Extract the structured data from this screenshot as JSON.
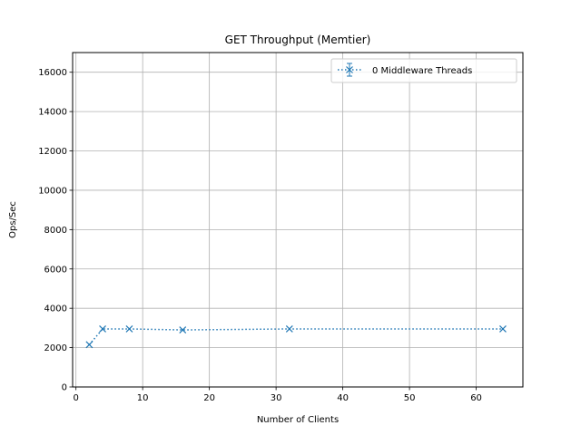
{
  "chart_data": {
    "type": "line",
    "title": "GET Throughput (Memtier)",
    "xlabel": "Number of Clients",
    "ylabel": "Ops/Sec",
    "xlim": [
      -0.5,
      67
    ],
    "ylim": [
      0,
      17000
    ],
    "xticks": [
      0,
      10,
      20,
      30,
      40,
      50,
      60
    ],
    "yticks": [
      0,
      2000,
      4000,
      6000,
      8000,
      10000,
      12000,
      14000,
      16000
    ],
    "grid": true,
    "legend_position": "top-right",
    "series": [
      {
        "name": "0 Middleware Threads",
        "color": "#1f77b4",
        "line_style": "dotted",
        "marker": "x",
        "x": [
          2,
          4,
          8,
          16,
          32,
          64
        ],
        "y": [
          2150,
          2950,
          2950,
          2900,
          2950,
          2950
        ]
      }
    ]
  }
}
